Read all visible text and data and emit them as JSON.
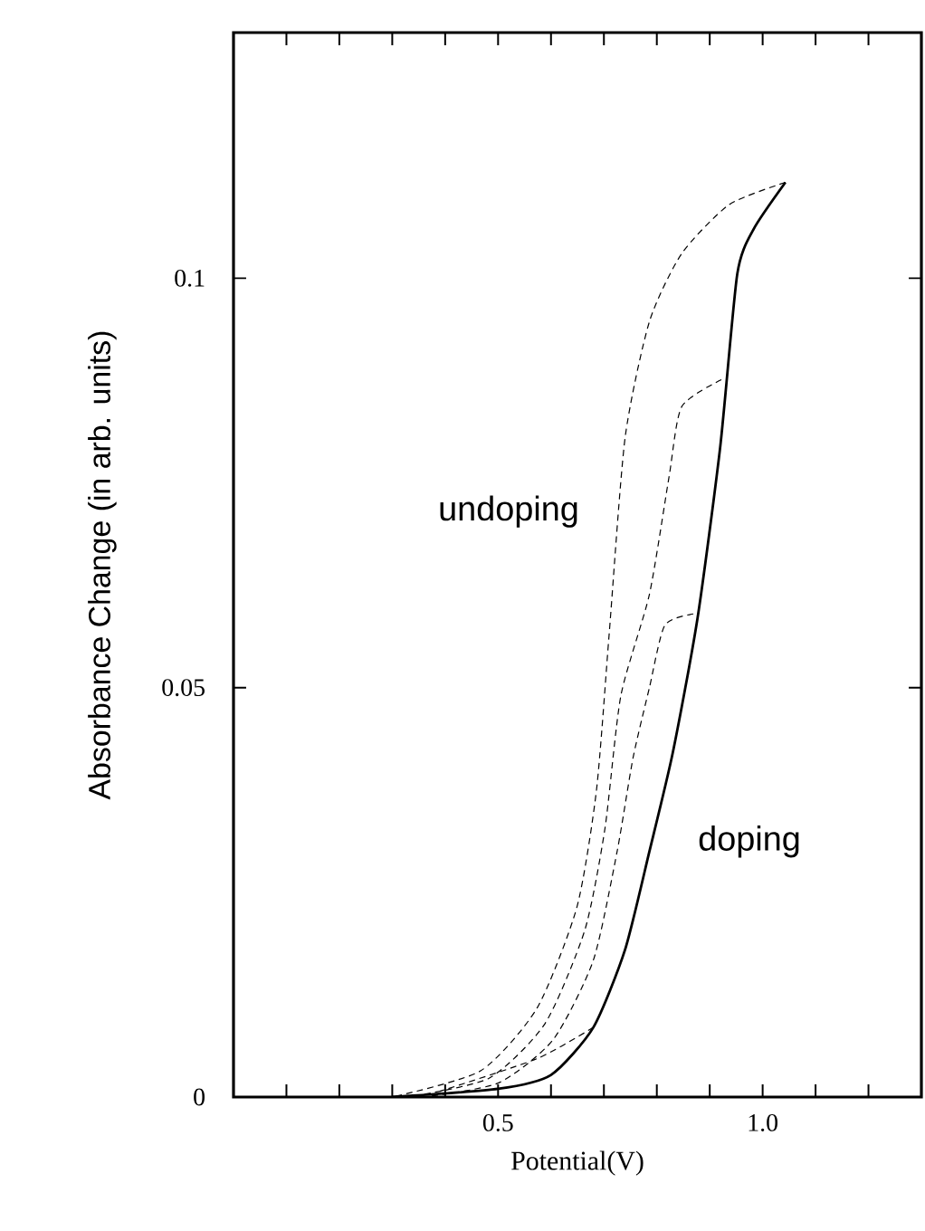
{
  "chart_data": {
    "type": "line",
    "xlabel": "Potential(V)",
    "ylabel": "Absorbance Change (in arb. units)",
    "xlim": [
      0,
      1.3
    ],
    "ylim": [
      0,
      0.13
    ],
    "xticks": [
      {
        "value": 0.1,
        "label": null
      },
      {
        "value": 0.2,
        "label": null
      },
      {
        "value": 0.3,
        "label": null
      },
      {
        "value": 0.4,
        "label": null
      },
      {
        "value": 0.5,
        "label": "0.5"
      },
      {
        "value": 0.6,
        "label": null
      },
      {
        "value": 0.7,
        "label": null
      },
      {
        "value": 0.8,
        "label": null
      },
      {
        "value": 0.9,
        "label": null
      },
      {
        "value": 1.0,
        "label": "1.0"
      },
      {
        "value": 1.1,
        "label": null
      },
      {
        "value": 1.2,
        "label": null
      }
    ],
    "yticks": [
      0,
      0.05,
      0.1
    ],
    "marker": "none",
    "series": [
      {
        "color": "#000000",
        "line_style": "solid",
        "x": [
          0.3,
          0.5,
          0.6,
          0.68,
          0.74,
          0.786,
          0.83,
          0.877,
          0.92,
          0.952,
          0.983,
          1.043
        ],
        "values": [
          0,
          0.001,
          0.0027,
          0.0085,
          0.018,
          0.03,
          0.042,
          0.0585,
          0.0795,
          0.1005,
          0.106,
          0.1117
        ]
      },
      {
        "color": "#000000",
        "line_style": "dashed",
        "x": [
          1.043,
          0.937,
          0.847,
          0.786,
          0.74,
          0.71,
          0.686,
          0.649,
          0.574,
          0.467,
          0.3
        ],
        "values": [
          0.1117,
          0.109,
          0.103,
          0.0947,
          0.0805,
          0.0566,
          0.0375,
          0.0232,
          0.0109,
          0.0032,
          0
        ]
      },
      {
        "color": "#000000",
        "line_style": "dashed",
        "x": [
          0.922,
          0.847,
          0.823,
          0.786,
          0.732,
          0.702,
          0.664,
          0.589,
          0.483,
          0.33
        ],
        "values": [
          0.0876,
          0.0843,
          0.0757,
          0.0614,
          0.049,
          0.0328,
          0.0204,
          0.009,
          0.0023,
          0
        ]
      },
      {
        "color": "#000000",
        "line_style": "dashed",
        "x": [
          0.869,
          0.815,
          0.786,
          0.755,
          0.725,
          0.68,
          0.604,
          0.5,
          0.36
        ],
        "values": [
          0.059,
          0.0576,
          0.05,
          0.0414,
          0.03,
          0.0167,
          0.007,
          0.0017,
          0
        ]
      },
      {
        "color": "#000000",
        "line_style": "dashed",
        "x": [
          0.68,
          0.574,
          0.39
        ],
        "values": [
          0.0085,
          0.0047,
          0.0007
        ]
      }
    ],
    "annotations": [
      "undoping",
      "doping"
    ]
  }
}
